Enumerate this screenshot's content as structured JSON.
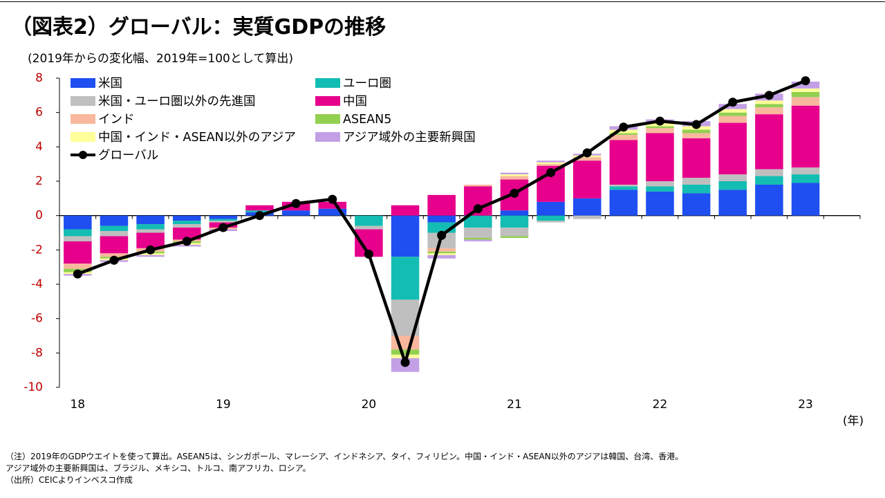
{
  "title": "（図表2）グローバル：実質GDPの推移",
  "subtitle": "(2019年からの変化幅、2019年=100として算出)",
  "notes": [
    "（注）2019年のGDPウエイトを使って算出。ASEAN5は、シンガポール、マレーシア、インドネシア、タイ、フィリピン。中国・インド・ASEAN以外のアジアは韓国、台湾、香港。",
    "アジア域外の主要新興国は、ブラジル、メキシコ、トルコ、南アフリカ、ロシア。",
    "（出所）CEICよりインベスコ作成"
  ],
  "chart_data": {
    "type": "bar",
    "stacked": true,
    "ylim": [
      -10,
      8
    ],
    "yticks": [
      8,
      6,
      4,
      2,
      0,
      -2,
      -4,
      -6,
      -8,
      -10
    ],
    "tick_color": "#c00000",
    "xlabel": "(年)",
    "xtick_labels": [
      {
        "label": "18",
        "index": 0
      },
      {
        "label": "19",
        "index": 4
      },
      {
        "label": "20",
        "index": 8
      },
      {
        "label": "21",
        "index": 12
      },
      {
        "label": "22",
        "index": 16
      },
      {
        "label": "23",
        "index": 20
      }
    ],
    "categories": [
      "2018Q1",
      "2018Q2",
      "2018Q3",
      "2018Q4",
      "2019Q1",
      "2019Q2",
      "2019Q3",
      "2019Q4",
      "2020Q1",
      "2020Q2",
      "2020Q3",
      "2020Q4",
      "2021Q1",
      "2021Q2",
      "2021Q3",
      "2021Q4",
      "2022Q1",
      "2022Q2",
      "2022Q3",
      "2022Q4",
      "2023Q1",
      "2023Q2"
    ],
    "series": [
      {
        "name": "米国",
        "color": "#1f4ff0",
        "values": [
          -0.8,
          -0.6,
          -0.5,
          -0.3,
          -0.2,
          0.2,
          0.3,
          0.4,
          -0.0,
          -2.4,
          -0.4,
          0.0,
          0.3,
          0.8,
          1.0,
          1.5,
          1.4,
          1.3,
          1.5,
          1.8,
          1.9,
          0
        ]
      },
      {
        "name": "ユーロ圏",
        "color": "#14bdb3",
        "values": [
          -0.4,
          -0.3,
          -0.3,
          -0.2,
          -0.1,
          0.1,
          0.0,
          0.0,
          -0.6,
          -2.5,
          -0.6,
          -0.7,
          -0.7,
          -0.3,
          0.0,
          0.2,
          0.3,
          0.5,
          0.5,
          0.5,
          0.5,
          0
        ]
      },
      {
        "name": "米国・ユーロ圏以外の先進国",
        "color": "#bfbfbf",
        "values": [
          -0.3,
          -0.3,
          -0.2,
          -0.2,
          -0.1,
          0.0,
          0.0,
          0.0,
          -0.2,
          -2.1,
          -0.9,
          -0.6,
          -0.5,
          -0.1,
          -0.2,
          0.1,
          0.3,
          0.4,
          0.4,
          0.4,
          0.4,
          0
        ]
      },
      {
        "name": "中国",
        "color": "#e6008c",
        "values": [
          -1.3,
          -1.0,
          -0.9,
          -0.7,
          -0.3,
          0.3,
          0.5,
          0.4,
          -1.6,
          0.6,
          1.2,
          1.7,
          1.8,
          2.1,
          2.2,
          2.6,
          2.8,
          2.3,
          3.0,
          3.2,
          3.6,
          0
        ]
      },
      {
        "name": "インド",
        "color": "#f9b89e",
        "values": [
          -0.3,
          -0.2,
          -0.2,
          -0.1,
          -0.1,
          0.0,
          0.0,
          0.0,
          0.0,
          -0.8,
          -0.2,
          0.1,
          0.2,
          0.1,
          0.2,
          0.3,
          0.3,
          0.3,
          0.4,
          0.4,
          0.5,
          0
        ]
      },
      {
        "name": "ASEAN5",
        "color": "#92d050",
        "values": [
          -0.2,
          -0.1,
          -0.1,
          -0.1,
          0.0,
          0.0,
          0.0,
          0.0,
          0.0,
          -0.3,
          -0.1,
          -0.1,
          -0.1,
          0.0,
          0.0,
          0.1,
          0.1,
          0.2,
          0.2,
          0.2,
          0.3,
          0
        ]
      },
      {
        "name": "中国・インド・ASEAN以外のアジア",
        "color": "#ffff99",
        "values": [
          -0.1,
          -0.1,
          -0.1,
          -0.1,
          0.0,
          0.0,
          0.0,
          0.0,
          0.0,
          -0.2,
          -0.1,
          0.0,
          0.1,
          0.1,
          0.1,
          0.2,
          0.2,
          0.2,
          0.2,
          0.2,
          0.2,
          0
        ]
      },
      {
        "name": "アジア域外の主要新興国",
        "color": "#c3a0e6",
        "values": [
          -0.1,
          -0.1,
          -0.1,
          -0.1,
          -0.1,
          0.0,
          0.0,
          0.0,
          0.0,
          -0.8,
          -0.2,
          -0.1,
          0.1,
          0.1,
          0.1,
          0.2,
          0.2,
          0.3,
          0.3,
          0.4,
          0.4,
          0
        ]
      }
    ],
    "line_series": {
      "name": "グローバル",
      "color": "#000000",
      "values": [
        -3.4,
        -2.6,
        -2.0,
        -1.5,
        -0.7,
        0.0,
        0.7,
        0.95,
        -2.25,
        -8.55,
        -1.15,
        0.4,
        1.3,
        2.5,
        3.65,
        5.15,
        5.5,
        5.3,
        6.6,
        7.0,
        7.85
      ]
    },
    "legend": {
      "columns": [
        [
          "米国",
          "米国・ユーロ圏以外の先進国",
          "インド",
          "中国・インド・ASEAN以外のアジア",
          "グローバル"
        ],
        [
          "ユーロ圏",
          "中国",
          "ASEAN5",
          "アジア域外の主要新興国"
        ]
      ]
    }
  }
}
